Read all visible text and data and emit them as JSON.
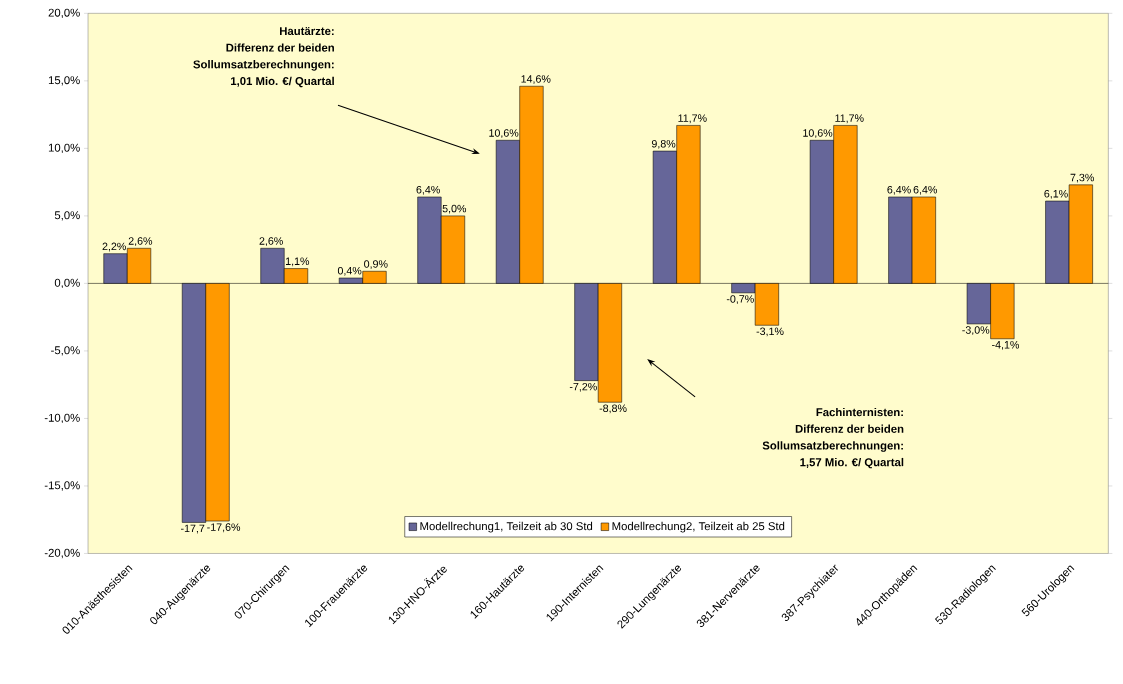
{
  "chart_data": {
    "type": "bar",
    "categories": [
      "010-Anästhesisten",
      "040-Augenärzte",
      "070-Chirurgen",
      "100-Frauenärzte",
      "130-HNO-Ärzte",
      "160-Hautärzte",
      "190-Internisten",
      "290-Lungenärzte",
      "381-Nervenärzte",
      "387-Psychiater",
      "440-Orthopäden",
      "530-Radiologen",
      "560-Urologen"
    ],
    "series": [
      {
        "name": "Modellrechung1, Teilzeit ab 30 Std",
        "color": "#666699",
        "values": [
          2.2,
          -17.7,
          2.6,
          0.4,
          6.4,
          10.6,
          -7.2,
          9.8,
          -0.7,
          10.6,
          6.4,
          -3.0,
          6.1
        ],
        "value_labels": [
          "2,2%",
          "-17,7",
          "2,6%",
          "0,4%",
          "6,4%",
          "10,6%",
          "-7,2%",
          "9,8%",
          "-0,7%",
          "10,6%",
          "6,4%",
          "-3,0%",
          "6,1%"
        ]
      },
      {
        "name": "Modellrechung2, Teilzeit ab 25 Std",
        "color": "#ff9900",
        "values": [
          2.6,
          -17.6,
          1.1,
          0.9,
          5.0,
          14.6,
          -8.8,
          11.7,
          -3.1,
          11.7,
          6.4,
          -4.1,
          7.3
        ],
        "value_labels": [
          "2,6%",
          "-17,6%",
          "1,1%",
          "0,9%",
          "5,0%",
          "14,6%",
          "-8,8%",
          "11,7%",
          "-3,1%",
          "11,7%",
          "6,4%",
          "-4,1%",
          "7,3%"
        ]
      }
    ],
    "ylim": [
      -20,
      20
    ],
    "yticks": [
      {
        "value": -20,
        "label": "-20,0%"
      },
      {
        "value": -15,
        "label": "-15,0%"
      },
      {
        "value": -10,
        "label": "-10,0%"
      },
      {
        "value": -5,
        "label": "-5,0%"
      },
      {
        "value": 0,
        "label": "0,0%"
      },
      {
        "value": 5,
        "label": "5,0%"
      },
      {
        "value": 10,
        "label": "10,0%"
      },
      {
        "value": 15,
        "label": "15,0%"
      },
      {
        "value": 20,
        "label": "20,0%"
      }
    ],
    "legend": "bottom",
    "annotations": [
      "Hautärzte:",
      "Differenz der beiden",
      "Sollumsatzberechnungen:",
      "1,01 Mio. €/ Quartal",
      "Fachinternisten:",
      "Differenz der beiden",
      "Sollumsatzberechnungen:",
      "1,57 Mio. €/ Quartal"
    ]
  }
}
